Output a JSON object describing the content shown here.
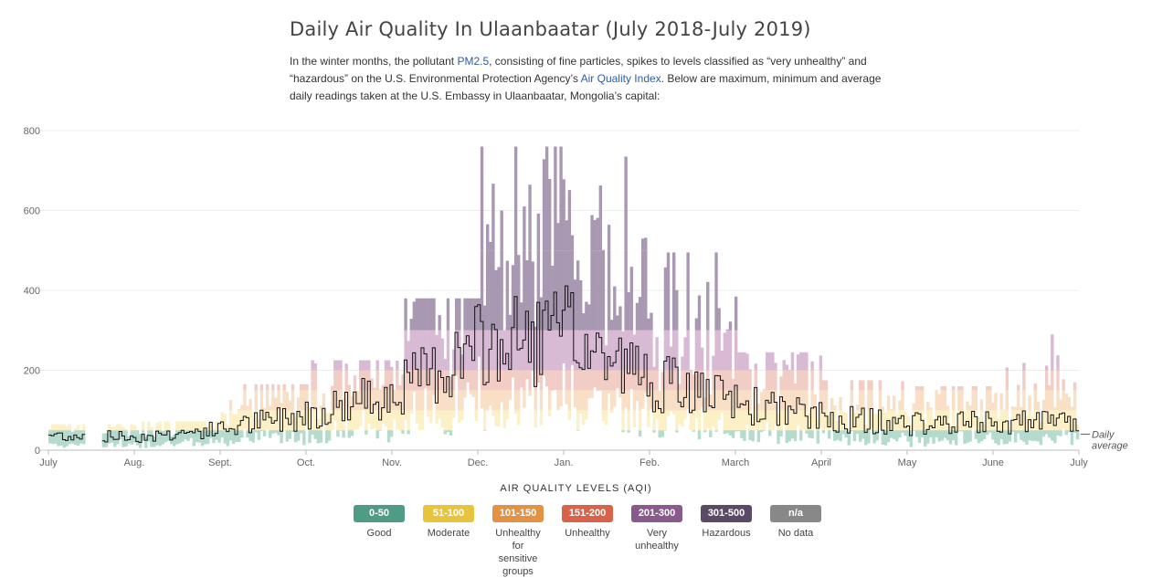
{
  "page": {
    "title": "Daily Air Quality In Ulaanbaatar (July 2018-July 2019)",
    "intro": {
      "t1": "In the winter months, the pollutant ",
      "link1": "PM2.5",
      "t2": ", consisting of fine particles, spikes to levels classified as “very unhealthy” and “hazardous” on the U.S. Environmental Protection Agency’s ",
      "link2": "Air Quality Index",
      "t3": ". Below are maximum, minimum and average daily readings taken at the U.S. Embassy in Ulaanbaatar, Mongolia’s capital:"
    }
  },
  "chart_data": {
    "type": "bar",
    "title": "Daily Air Quality In Ulaanbaatar (July 2018-July 2019)",
    "ylim": [
      0,
      800
    ],
    "yticks": [
      0,
      200,
      400,
      600,
      800
    ],
    "xticks": [
      "July",
      "Aug.",
      "Sept.",
      "Oct.",
      "Nov.",
      "Dec.",
      "Jan.",
      "Feb.",
      "March",
      "April",
      "May",
      "June",
      "July"
    ],
    "average_label": [
      "Daily",
      "average"
    ],
    "levels": [
      {
        "range": "0-50",
        "from": 0,
        "to": 50,
        "label": [
          "Good"
        ],
        "color": "#4e9c85",
        "band": "#b5dbcd"
      },
      {
        "range": "51-100",
        "from": 50,
        "to": 100,
        "label": [
          "Moderate"
        ],
        "color": "#e8c43c",
        "band": "#fbf0c6"
      },
      {
        "range": "101-150",
        "from": 100,
        "to": 150,
        "label": [
          "Unhealthy",
          "for sensitive",
          "groups"
        ],
        "color": "#e39244",
        "band": "#f8dfc6"
      },
      {
        "range": "151-200",
        "from": 150,
        "to": 200,
        "label": [
          "Unhealthy"
        ],
        "color": "#d9624a",
        "band": "#f2cdc6"
      },
      {
        "range": "201-300",
        "from": 200,
        "to": 300,
        "label": [
          "Very",
          "unhealthy"
        ],
        "color": "#8a5a8c",
        "band": "#d8bad4"
      },
      {
        "range": "301-500",
        "from": 300,
        "to": 500,
        "label": [
          "Hazardous"
        ],
        "color": "#5b4a66",
        "band": "#a998b2"
      },
      {
        "range": "n/a",
        "from": null,
        "to": null,
        "label": [
          "No data"
        ],
        "color": "#888888",
        "band": null
      }
    ],
    "legend_title": "AIR QUALITY LEVELS (AQI)",
    "monthly_average": [
      {
        "month": "July",
        "avg": 38,
        "max": 65
      },
      {
        "month": "Aug.",
        "avg": 33,
        "max": 72
      },
      {
        "month": "Sept.",
        "avg": 52,
        "max": 165
      },
      {
        "month": "Oct.",
        "avg": 92,
        "max": 225
      },
      {
        "month": "Nov.",
        "avg": 145,
        "max": 380
      },
      {
        "month": "Dec.",
        "avg": 255,
        "max": 760
      },
      {
        "month": "Jan.",
        "avg": 290,
        "max": 735
      },
      {
        "month": "Feb.",
        "avg": 175,
        "max": 495
      },
      {
        "month": "March",
        "avg": 118,
        "max": 245
      },
      {
        "month": "April",
        "avg": 82,
        "max": 175
      },
      {
        "month": "May",
        "avg": 65,
        "max": 160
      },
      {
        "month": "June",
        "avg": 68,
        "max": 290
      }
    ],
    "no_data_period": "late July 2018"
  }
}
